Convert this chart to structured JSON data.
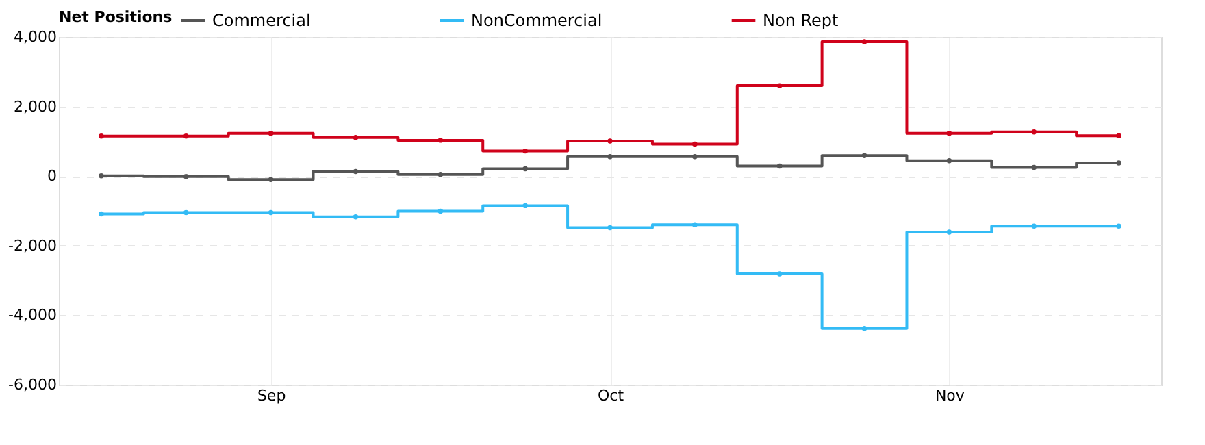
{
  "chart_data": {
    "type": "step",
    "legend_title": "Net Positions",
    "categories": [
      null,
      null,
      "Sep",
      null,
      null,
      null,
      "Oct",
      null,
      null,
      null,
      "Nov",
      null,
      null
    ],
    "series": [
      {
        "name": "Commercial",
        "color": "#555555",
        "values": [
          10,
          -10,
          -100,
          130,
          50,
          210,
          560,
          560,
          290,
          590,
          440,
          250,
          380
        ]
      },
      {
        "name": "NonCommercial",
        "color": "#33bbf5",
        "values": [
          -1090,
          -1050,
          -1050,
          -1170,
          -1010,
          -850,
          -1480,
          -1400,
          -2810,
          -4380,
          -1610,
          -1440,
          -1440
        ]
      },
      {
        "name": "Non Rept",
        "color": "#d0021b",
        "values": [
          1150,
          1150,
          1230,
          1110,
          1030,
          720,
          1010,
          920,
          2600,
          3860,
          1230,
          1270,
          1160
        ]
      }
    ],
    "ylim": [
      -6000,
      4000
    ],
    "yticks": [
      {
        "value": -6000,
        "label": "-6,000"
      },
      {
        "value": -4000,
        "label": "-4,000"
      },
      {
        "value": -2000,
        "label": "-2,000"
      },
      0,
      {
        "value": 2000,
        "label": "2,000"
      },
      {
        "value": 4000,
        "label": "4,000"
      }
    ],
    "grid": true,
    "legend": "top",
    "marker": "circle",
    "line_style": "solid"
  }
}
